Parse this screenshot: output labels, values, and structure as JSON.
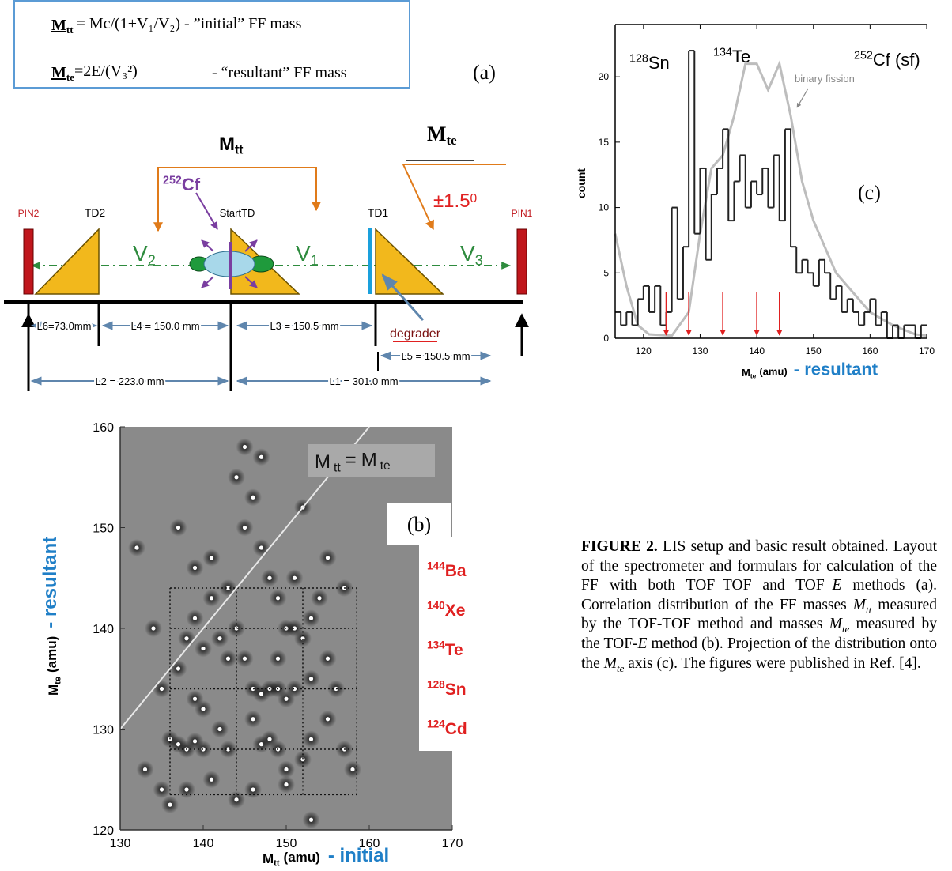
{
  "formulas": [
    {
      "symbol": "M",
      "sub": "tt",
      "expr": "= Mc/(1+V₁/V₂) - ”initial” FF mass"
    },
    {
      "symbol": "M",
      "sub": "te",
      "expr": "=2E/(V₃²)",
      "note": "- “resultant” FF mass"
    }
  ],
  "diagram": {
    "panel_label": "(a)",
    "pin2": "PIN2",
    "td2": "TD2",
    "start_td": "StartTD",
    "td1": "TD1",
    "pin1": "PIN1",
    "source": {
      "mass": "252",
      "symbol": "Cf"
    },
    "v2": {
      "v": "V",
      "sub": "2"
    },
    "v1": {
      "v": "V",
      "sub": "1"
    },
    "v3": {
      "v": "V",
      "sub": "3"
    },
    "m_tt": {
      "m": "M",
      "sub": "tt"
    },
    "m_te": {
      "m": "M",
      "sub": "te"
    },
    "angle": {
      "text": "±1.5",
      "sup": "0"
    },
    "degrader": "degrader",
    "distances": [
      "L6=73.0mm",
      "L4 = 150.0 mm",
      "L3 = 150.5 mm",
      "L5 = 150.5 mm",
      "L2 = 223.0 mm",
      "L1 = 301.0 mm"
    ]
  },
  "chart_data": [
    {
      "type": "scatter",
      "panel_label": "(b)",
      "x_label": {
        "m": "M",
        "sub": "tt",
        "unit": "(amu)",
        "tag": "- initial"
      },
      "y_label": {
        "m": "M",
        "sub": "te",
        "unit": "(amu)",
        "tag": "- resultant"
      },
      "diagonal_label": {
        "m1": "M",
        "s1": "tt",
        "eq": "=",
        "m2": "M",
        "s2": "te"
      },
      "isotopes": [
        {
          "mass": "144",
          "symbol": "Ba"
        },
        {
          "mass": "140",
          "symbol": "Xe"
        },
        {
          "mass": "134",
          "symbol": "Te"
        },
        {
          "mass": "128",
          "symbol": "Sn"
        },
        {
          "mass": "124",
          "symbol": "Cd"
        }
      ],
      "xlim": [
        130,
        170
      ],
      "ylim": [
        120,
        160
      ],
      "xticks": [
        130,
        140,
        150,
        160,
        170
      ],
      "yticks": [
        120,
        130,
        140,
        150,
        160
      ],
      "dotted_x": [
        136,
        144,
        152,
        158.5
      ],
      "dotted_y": [
        123.5,
        128,
        134,
        140,
        144
      ],
      "color": "#ffffff",
      "background": "#8a8a8a",
      "x": [
        132,
        134,
        135,
        136,
        137,
        138,
        139,
        140,
        137,
        138,
        139,
        140,
        139,
        140,
        141,
        142,
        143,
        143,
        144,
        145,
        146,
        147,
        148,
        149,
        150,
        151,
        152,
        153,
        154,
        155,
        146,
        147,
        148,
        149,
        150,
        151,
        145,
        146,
        147,
        148,
        149,
        150,
        152,
        153,
        155,
        156,
        157,
        158,
        142,
        143,
        141,
        138,
        136,
        144,
        146,
        150,
        153,
        147,
        145,
        144,
        137,
        139,
        152,
        155,
        157,
        141,
        149,
        151,
        153,
        135,
        133
      ],
      "values": [
        148,
        140,
        134,
        129,
        128.5,
        128,
        128.8,
        128,
        136,
        139,
        141,
        138,
        133,
        132,
        143,
        139,
        144,
        137,
        140,
        150,
        153,
        148,
        145,
        143,
        140,
        140,
        139,
        141,
        143,
        137,
        134,
        133.5,
        134,
        134,
        133,
        134,
        137,
        131,
        128.5,
        129,
        128,
        126,
        127,
        129,
        131,
        134,
        128,
        126,
        130,
        128,
        125,
        124,
        122.5,
        123,
        124,
        124.5,
        121,
        157,
        158,
        155,
        150,
        146,
        152,
        147,
        144,
        147,
        137,
        145,
        135,
        124,
        126
      ]
    },
    {
      "type": "histogram",
      "panel_label": "(c)",
      "y_label": "count",
      "x_label": {
        "m": "M",
        "sub": "te",
        "unit": "(amu)",
        "tag": "- resultant"
      },
      "annotations": [
        {
          "mass": "128",
          "symbol": "Sn"
        },
        {
          "mass": "134",
          "symbol": "Te"
        },
        {
          "mass": "252",
          "symbol": "Cf (sf)"
        }
      ],
      "xlim": [
        115,
        170
      ],
      "ylim": [
        0,
        24
      ],
      "xticks": [
        120,
        130,
        140,
        150,
        160,
        170
      ],
      "yticks": [
        0,
        5,
        10,
        15,
        20
      ],
      "color": "#222222",
      "bins": [
        115,
        116,
        117,
        118,
        119,
        120,
        121,
        122,
        123,
        124,
        125,
        126,
        127,
        128,
        129,
        130,
        131,
        132,
        133,
        134,
        135,
        136,
        137,
        138,
        139,
        140,
        141,
        142,
        143,
        144,
        145,
        146,
        147,
        148,
        149,
        150,
        151,
        152,
        153,
        154,
        155,
        156,
        157,
        158,
        159,
        160,
        161,
        162,
        163,
        164,
        165,
        166,
        167,
        168,
        169,
        170
      ],
      "values": [
        2,
        1,
        2,
        1,
        3,
        4,
        2,
        4,
        1,
        2,
        10,
        3,
        7,
        22,
        8,
        13,
        6,
        11,
        13,
        16,
        9,
        12,
        14,
        10,
        12,
        11,
        13,
        10,
        14,
        9,
        16,
        7,
        5,
        6,
        5,
        4,
        6,
        5,
        3,
        4,
        2,
        3,
        2,
        1,
        2,
        3,
        1,
        2,
        0,
        1,
        0,
        1,
        1,
        0,
        1
      ],
      "curve": {
        "name": "binary fission",
        "color": "#bdbdbd",
        "x": [
          115,
          117,
          119,
          121,
          125,
          128,
          130,
          132,
          134,
          136,
          138,
          140,
          142,
          144,
          146,
          148,
          150,
          152,
          154,
          156,
          158,
          160,
          164,
          168,
          170
        ],
        "values": [
          8,
          4,
          1,
          0.3,
          0.2,
          2,
          8,
          13,
          14,
          17,
          21,
          21,
          19,
          21,
          17,
          12,
          9,
          7,
          5,
          4,
          3,
          2,
          1,
          0.3,
          0.2
        ]
      },
      "arrows": {
        "color": "#e02020",
        "x": [
          124,
          128,
          134,
          140,
          144
        ]
      }
    }
  ],
  "caption": {
    "label": "FIGURE 2.",
    "segments": [
      {
        "text": " LIS setup and basic result obtained. Layout of the spectrometer and formulars for calculation of the FF with both TOF–TOF and TOF–"
      },
      {
        "text": "E",
        "italic": true
      },
      {
        "text": " methods (a). Correlation distribution of the FF masses "
      },
      {
        "text": "M",
        "sub": "tt",
        "italic": true
      },
      {
        "text": " measured by the TOF-TOF method and masses "
      },
      {
        "text": "M",
        "sub": "te",
        "italic": true
      },
      {
        "text": " measured by the TOF-"
      },
      {
        "text": "E",
        "italic": true
      },
      {
        "text": " method (b). Projection of the distribution onto the "
      },
      {
        "text": "M",
        "sub": "te",
        "italic": true
      },
      {
        "text": " axis (c). The figures were published in Ref.  [4]."
      }
    ]
  }
}
